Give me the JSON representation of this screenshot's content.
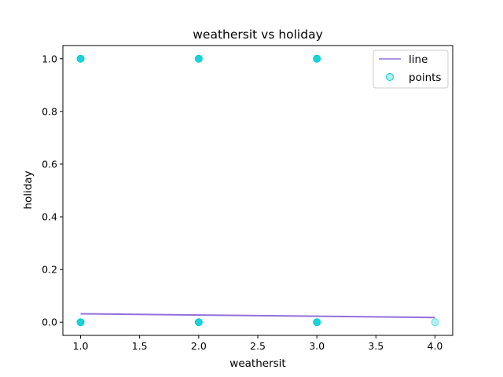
{
  "chart_data": {
    "type": "scatter",
    "title": "weathersit vs holiday",
    "xlabel": "weathersit",
    "ylabel": "holiday",
    "xlim": [
      0.85,
      4.15
    ],
    "ylim": [
      -0.05,
      1.05
    ],
    "x_ticks": [
      1.0,
      1.5,
      2.0,
      2.5,
      3.0,
      3.5,
      4.0
    ],
    "x_tick_labels": [
      "1.0",
      "1.5",
      "2.0",
      "2.5",
      "3.0",
      "3.5",
      "4.0"
    ],
    "y_ticks": [
      0.0,
      0.2,
      0.4,
      0.6,
      0.8,
      1.0
    ],
    "y_tick_labels": [
      "0.0",
      "0.2",
      "0.4",
      "0.6",
      "0.8",
      "1.0"
    ],
    "grid": false,
    "legend_position": "top-right",
    "series": [
      {
        "name": "line",
        "type": "line",
        "color": "#9370db",
        "x": [
          1.0,
          4.0
        ],
        "y": [
          0.032,
          0.018
        ]
      },
      {
        "name": "points",
        "type": "scatter",
        "color": "#00ced1",
        "x": [
          1.0,
          1.0,
          2.0,
          2.0,
          3.0,
          3.0,
          4.0
        ],
        "y": [
          1.0,
          0.0,
          1.0,
          0.0,
          1.0,
          0.0,
          0.0
        ],
        "opacity": [
          0.9,
          0.9,
          0.9,
          0.9,
          0.9,
          0.9,
          0.3
        ]
      }
    ]
  }
}
